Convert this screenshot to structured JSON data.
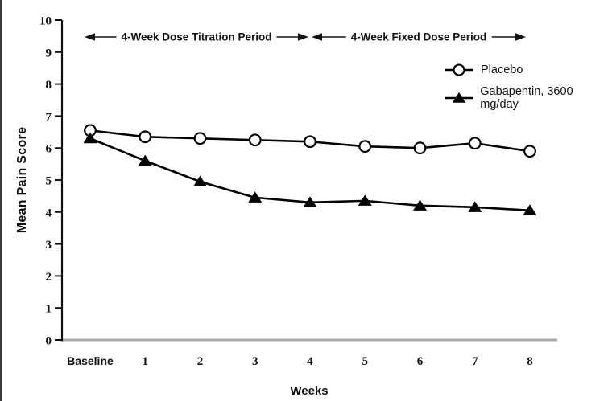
{
  "figure": {
    "background": "#ffffff",
    "series_color": "#000000",
    "x_axis_line_color": "#a9a9a9",
    "y_axis_line_color": "#111111",
    "scan_edge_color": "#3a3a3a"
  },
  "chart_data": {
    "type": "line",
    "title": "",
    "xlabel": "Weeks",
    "ylabel": "Mean Pain Score",
    "x_categories": [
      "Baseline",
      "1",
      "2",
      "3",
      "4",
      "5",
      "6",
      "7",
      "8"
    ],
    "ylim": [
      0,
      10
    ],
    "yticks": [
      0,
      1,
      2,
      3,
      4,
      5,
      6,
      7,
      8,
      9,
      10
    ],
    "grid": false,
    "legend_position": "upper-right-inside",
    "series": [
      {
        "name": "Placebo",
        "marker": "open-circle",
        "line_color": "#000000",
        "values": [
          6.55,
          6.35,
          6.3,
          6.25,
          6.2,
          6.05,
          6.0,
          6.15,
          5.9
        ]
      },
      {
        "name": "Gabapentin, 3600 mg/day",
        "marker": "filled-triangle",
        "line_color": "#000000",
        "values": [
          6.3,
          5.6,
          4.95,
          4.45,
          4.3,
          4.35,
          4.2,
          4.15,
          4.05
        ]
      }
    ],
    "annotations": [
      {
        "label": "4-Week Dose Titration Period",
        "from_category": "Baseline",
        "to_category": "4",
        "style": "double-arrow"
      },
      {
        "label": "4-Week Fixed Dose Period",
        "from_category": "4",
        "to_category": "8",
        "style": "double-arrow"
      }
    ]
  }
}
